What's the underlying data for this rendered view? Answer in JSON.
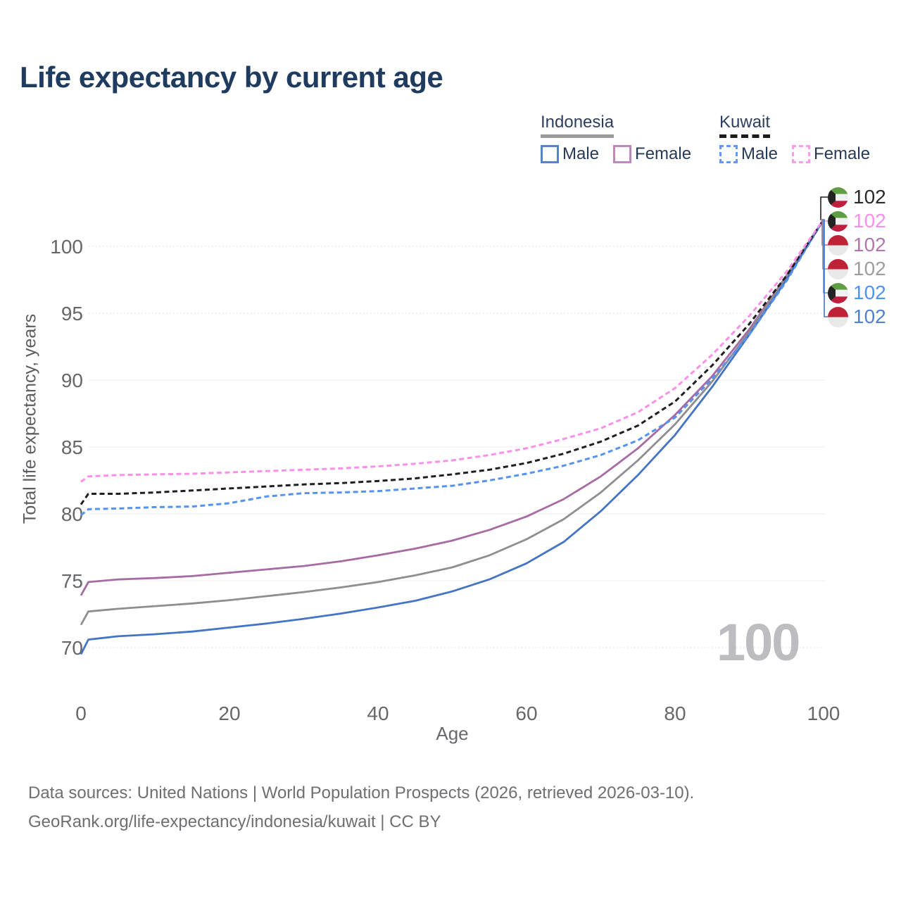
{
  "title": "Life expectancy by current age",
  "watermark": "100",
  "footer": {
    "line1": "Data sources: United Nations | World Population Prospects (2026, retrieved 2026-03-10).",
    "line2": "GeoRank.org/life-expectancy/indonesia/kuwait | CC BY"
  },
  "legend": {
    "groups": [
      {
        "label": "Indonesia",
        "underline_color": "#9a9a9a",
        "underline_style": "solid",
        "items": [
          {
            "label": "Male",
            "color": "#5585c8"
          },
          {
            "label": "Female",
            "color": "#c288bd"
          }
        ]
      },
      {
        "label": "Kuwait",
        "underline_color": "#1c1c1c",
        "underline_style": "dashed",
        "items": [
          {
            "label": "Male",
            "color": "#5c9cf7"
          },
          {
            "label": "Female",
            "color": "#fc9def"
          }
        ]
      }
    ]
  },
  "chart_data": {
    "type": "line",
    "title": "Life expectancy by current age",
    "xlabel": "Age",
    "ylabel": "Total life expectancy, years",
    "xlim": [
      0,
      100
    ],
    "ylim": [
      70,
      100
    ],
    "x_ticks": [
      0,
      20,
      40,
      60,
      80,
      100
    ],
    "y_ticks": [
      70,
      75,
      80,
      85,
      90,
      95,
      100
    ],
    "dotted_gridlines": [
      70,
      95,
      100
    ],
    "legend_position": "top-right",
    "hovered_age": "100",
    "series": [
      {
        "name": "Kuwait",
        "country": "Kuwait",
        "sex": "Both",
        "color": "#1f1f1f",
        "label_color": "#2a2a2a",
        "dashed": true,
        "flag": "kuwait",
        "end_value": "102",
        "points": [
          [
            0,
            80.7
          ],
          [
            1,
            81.5
          ],
          [
            5,
            81.5
          ],
          [
            10,
            81.6
          ],
          [
            15,
            81.75
          ],
          [
            20,
            81.9
          ],
          [
            25,
            82.05
          ],
          [
            30,
            82.2
          ],
          [
            35,
            82.3
          ],
          [
            40,
            82.45
          ],
          [
            45,
            82.65
          ],
          [
            50,
            82.95
          ],
          [
            55,
            83.3
          ],
          [
            60,
            83.8
          ],
          [
            65,
            84.5
          ],
          [
            70,
            85.4
          ],
          [
            75,
            86.6
          ],
          [
            80,
            88.4
          ],
          [
            85,
            91.1
          ],
          [
            90,
            94.2
          ],
          [
            95,
            97.8
          ],
          [
            100,
            102
          ]
        ]
      },
      {
        "name": "Kuwait Female",
        "country": "Kuwait",
        "sex": "Female",
        "color": "#fb8fe9",
        "label_color": "#fb8fe9",
        "dashed": true,
        "flag": "kuwait",
        "end_value": "102",
        "points": [
          [
            0,
            82.4
          ],
          [
            1,
            82.8
          ],
          [
            5,
            82.9
          ],
          [
            10,
            82.95
          ],
          [
            15,
            83.0
          ],
          [
            20,
            83.1
          ],
          [
            25,
            83.2
          ],
          [
            30,
            83.3
          ],
          [
            35,
            83.4
          ],
          [
            40,
            83.55
          ],
          [
            45,
            83.75
          ],
          [
            50,
            84.0
          ],
          [
            55,
            84.4
          ],
          [
            60,
            84.9
          ],
          [
            65,
            85.6
          ],
          [
            70,
            86.4
          ],
          [
            75,
            87.6
          ],
          [
            80,
            89.4
          ],
          [
            85,
            91.9
          ],
          [
            90,
            94.8
          ],
          [
            95,
            98.1
          ],
          [
            100,
            102
          ]
        ]
      },
      {
        "name": "Indonesia Female",
        "country": "Indonesia",
        "sex": "Female",
        "color": "#a76ba3",
        "label_color": "#b277ae",
        "dashed": false,
        "flag": "indonesia",
        "end_value": "102",
        "points": [
          [
            0,
            73.9
          ],
          [
            1,
            74.9
          ],
          [
            5,
            75.1
          ],
          [
            10,
            75.2
          ],
          [
            15,
            75.35
          ],
          [
            20,
            75.6
          ],
          [
            25,
            75.85
          ],
          [
            30,
            76.1
          ],
          [
            35,
            76.45
          ],
          [
            40,
            76.9
          ],
          [
            45,
            77.4
          ],
          [
            50,
            78.0
          ],
          [
            55,
            78.8
          ],
          [
            60,
            79.8
          ],
          [
            65,
            81.1
          ],
          [
            70,
            82.8
          ],
          [
            75,
            84.9
          ],
          [
            80,
            87.4
          ],
          [
            85,
            90.3
          ],
          [
            90,
            93.8
          ],
          [
            95,
            97.8
          ],
          [
            100,
            102
          ]
        ]
      },
      {
        "name": "Indonesia",
        "country": "Indonesia",
        "sex": "Both",
        "color": "#8e8e90",
        "label_color": "#9d9d9f",
        "dashed": false,
        "flag": "indonesia",
        "end_value": "102",
        "points": [
          [
            0,
            71.7
          ],
          [
            1,
            72.7
          ],
          [
            5,
            72.9
          ],
          [
            10,
            73.1
          ],
          [
            15,
            73.3
          ],
          [
            20,
            73.55
          ],
          [
            25,
            73.85
          ],
          [
            30,
            74.15
          ],
          [
            35,
            74.5
          ],
          [
            40,
            74.9
          ],
          [
            45,
            75.4
          ],
          [
            50,
            76.0
          ],
          [
            55,
            76.9
          ],
          [
            60,
            78.1
          ],
          [
            65,
            79.6
          ],
          [
            70,
            81.6
          ],
          [
            75,
            84.0
          ],
          [
            80,
            86.7
          ],
          [
            85,
            89.9
          ],
          [
            90,
            93.6
          ],
          [
            95,
            97.7
          ],
          [
            100,
            102
          ]
        ]
      },
      {
        "name": "Kuwait Male",
        "country": "Kuwait",
        "sex": "Male",
        "color": "#5493f0",
        "label_color": "#4f93f2",
        "dashed": true,
        "flag": "kuwait",
        "end_value": "102",
        "points": [
          [
            0,
            79.9
          ],
          [
            1,
            80.35
          ],
          [
            5,
            80.4
          ],
          [
            10,
            80.5
          ],
          [
            15,
            80.55
          ],
          [
            20,
            80.8
          ],
          [
            25,
            81.3
          ],
          [
            30,
            81.55
          ],
          [
            35,
            81.6
          ],
          [
            40,
            81.7
          ],
          [
            45,
            81.9
          ],
          [
            50,
            82.1
          ],
          [
            55,
            82.5
          ],
          [
            60,
            83.0
          ],
          [
            65,
            83.6
          ],
          [
            70,
            84.4
          ],
          [
            75,
            85.5
          ],
          [
            80,
            87.2
          ],
          [
            85,
            90.1
          ],
          [
            90,
            93.4
          ],
          [
            95,
            97.4
          ],
          [
            100,
            102
          ]
        ]
      },
      {
        "name": "Indonesia Male",
        "country": "Indonesia",
        "sex": "Male",
        "color": "#4474c4",
        "label_color": "#5181cf",
        "dashed": false,
        "flag": "indonesia",
        "end_value": "102",
        "points": [
          [
            0,
            69.5
          ],
          [
            1,
            70.6
          ],
          [
            5,
            70.85
          ],
          [
            10,
            71.0
          ],
          [
            15,
            71.2
          ],
          [
            20,
            71.5
          ],
          [
            25,
            71.8
          ],
          [
            30,
            72.15
          ],
          [
            35,
            72.55
          ],
          [
            40,
            73.0
          ],
          [
            45,
            73.5
          ],
          [
            50,
            74.2
          ],
          [
            55,
            75.1
          ],
          [
            60,
            76.3
          ],
          [
            65,
            77.9
          ],
          [
            70,
            80.2
          ],
          [
            75,
            82.9
          ],
          [
            80,
            85.9
          ],
          [
            85,
            89.5
          ],
          [
            90,
            93.4
          ],
          [
            95,
            97.5
          ],
          [
            100,
            102
          ]
        ]
      }
    ]
  }
}
